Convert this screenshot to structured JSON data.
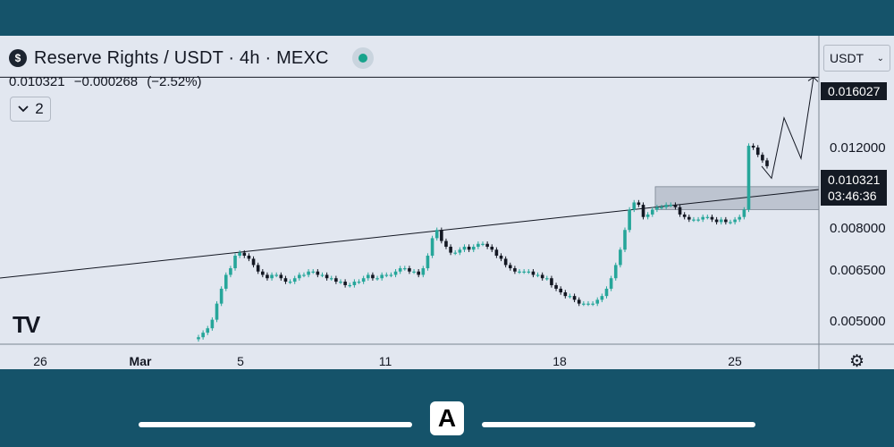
{
  "header": {
    "symbol_icon": "symbol-coin-icon",
    "title": "Reserve Rights / USDT · 4h · MEXC",
    "last_price": "0.010321",
    "change": "−0.000268",
    "change_pct": "(−2.52%)",
    "indicator_toggle": "2"
  },
  "currency": {
    "selected": "USDT"
  },
  "axis": {
    "price_labels": [
      "0.012000",
      "0.008000",
      "0.006500",
      "0.005000"
    ],
    "target_tag": "0.016027",
    "current_tag": "0.010321",
    "countdown": "03:46:36",
    "time_labels": [
      "26",
      "Mar",
      "5",
      "11",
      "18",
      "25"
    ]
  },
  "bottom_bar": {
    "app_icon": "app-logo-icon"
  },
  "chart_data": {
    "type": "candlestick",
    "title": "Reserve Rights / USDT · 4h · MEXC",
    "y_scale": "log",
    "ylim": [
      0.00425,
      0.0197
    ],
    "x_ticks": [
      "26",
      "Mar",
      "5",
      "11",
      "18",
      "25"
    ],
    "colors": {
      "up": "#26a69a",
      "down": "#131722",
      "line": "#131722",
      "zone": "#9ea8b6"
    },
    "price_levels": [
      0.016027,
      0.012,
      0.010321,
      0.008,
      0.0065,
      0.005
    ],
    "candles_close": [
      0.0044,
      0.0045,
      0.0046,
      0.0048,
      0.0052,
      0.0056,
      0.006,
      0.0062,
      0.0066,
      0.0067,
      0.0066,
      0.0065,
      0.0063,
      0.0061,
      0.006,
      0.0059,
      0.006,
      0.006,
      0.0059,
      0.0058,
      0.0058,
      0.0059,
      0.006,
      0.006,
      0.0061,
      0.0061,
      0.006,
      0.006,
      0.0059,
      0.0059,
      0.0058,
      0.0058,
      0.0057,
      0.0057,
      0.0058,
      0.0058,
      0.0059,
      0.006,
      0.0059,
      0.0059,
      0.006,
      0.006,
      0.006,
      0.0061,
      0.0062,
      0.0062,
      0.0061,
      0.0061,
      0.006,
      0.0062,
      0.0066,
      0.0072,
      0.0075,
      0.0071,
      0.0069,
      0.0067,
      0.0067,
      0.0068,
      0.0069,
      0.0068,
      0.0069,
      0.007,
      0.007,
      0.0069,
      0.0068,
      0.0066,
      0.0065,
      0.0063,
      0.0062,
      0.0061,
      0.0061,
      0.0061,
      0.0061,
      0.006,
      0.006,
      0.0059,
      0.0059,
      0.0057,
      0.0056,
      0.0055,
      0.0054,
      0.0054,
      0.0053,
      0.0052,
      0.0052,
      0.0052,
      0.0052,
      0.0053,
      0.0054,
      0.0056,
      0.0059,
      0.0063,
      0.0068,
      0.0075,
      0.0083,
      0.0086,
      0.0085,
      0.008,
      0.0081,
      0.0083,
      0.0084,
      0.0084,
      0.0085,
      0.0085,
      0.0084,
      0.0081,
      0.008,
      0.0079,
      0.0079,
      0.0079,
      0.008,
      0.008,
      0.0079,
      0.0078,
      0.0079,
      0.0078,
      0.0078,
      0.0079,
      0.008,
      0.0083,
      0.0114,
      0.0113,
      0.0109,
      0.0106,
      0.0103
    ],
    "trendline": {
      "points": [
        [
          "26",
          0.0062
        ],
        [
          "now",
          0.00917
        ]
      ]
    },
    "zone": {
      "low": 0.0083,
      "high": 0.0093
    },
    "projection": [
      0.0103,
      0.0097,
      0.0131,
      0.0107,
      0.016027
    ],
    "current_price": 0.010321,
    "target_price": 0.016027
  }
}
